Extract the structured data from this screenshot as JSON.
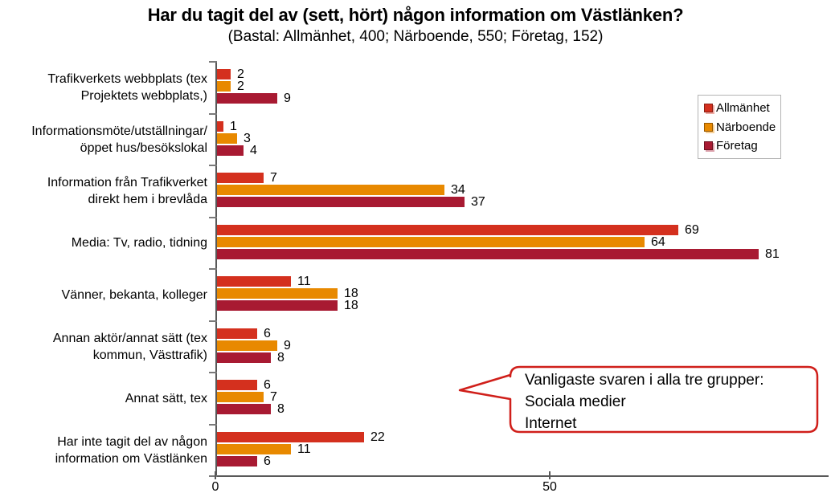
{
  "title": "Har du tagit del av (sett, hört) någon information om Västlänken?",
  "subtitle": "(Bastal: Allmänhet, 400; Närboende, 550; Företag, 152)",
  "chart_data": {
    "type": "bar",
    "orientation": "horizontal",
    "title": "Har du tagit del av (sett, hört) någon information om Västlänken?",
    "subtitle": "(Bastal: Allmänhet, 400; Närboende, 550; Företag, 152)",
    "categories": [
      "Trafikverkets webbplats (tex\nProjektets webbplats,)",
      "Informationsmöte/utställningar/\nöppet hus/besökslokal",
      "Information från Trafikverket\ndirekt hem i brevlåda",
      "Media: Tv, radio, tidning",
      "Vänner, bekanta, kolleger",
      "Annan aktör/annat sätt (tex\nkommun, Västtrafik)",
      "Annat sätt, tex",
      "Har inte tagit del av någon\ninformation om Västlänken"
    ],
    "series": [
      {
        "name": "Allmänhet",
        "color": "#D4301E",
        "values": [
          2,
          1,
          7,
          69,
          11,
          6,
          6,
          22
        ]
      },
      {
        "name": "Närboende",
        "color": "#E88900",
        "values": [
          2,
          3,
          34,
          64,
          18,
          9,
          7,
          11
        ]
      },
      {
        "name": "Företag",
        "color": "#A81A32",
        "values": [
          9,
          4,
          37,
          81,
          18,
          8,
          8,
          6
        ]
      }
    ],
    "x_ticks": [
      0,
      50
    ],
    "xlim": [
      0,
      91.5
    ],
    "grid": false,
    "data_labels": true,
    "legend_position": "top-right"
  },
  "callout": {
    "lines": [
      "Vanligaste svaren i alla tre grupper:",
      "Sociala medier",
      "Internet"
    ],
    "border_color": "#D01F1A"
  },
  "colors": {
    "axis": "#595959",
    "tick": "#7A7A7A",
    "legend_border": "#B3B3B3"
  }
}
